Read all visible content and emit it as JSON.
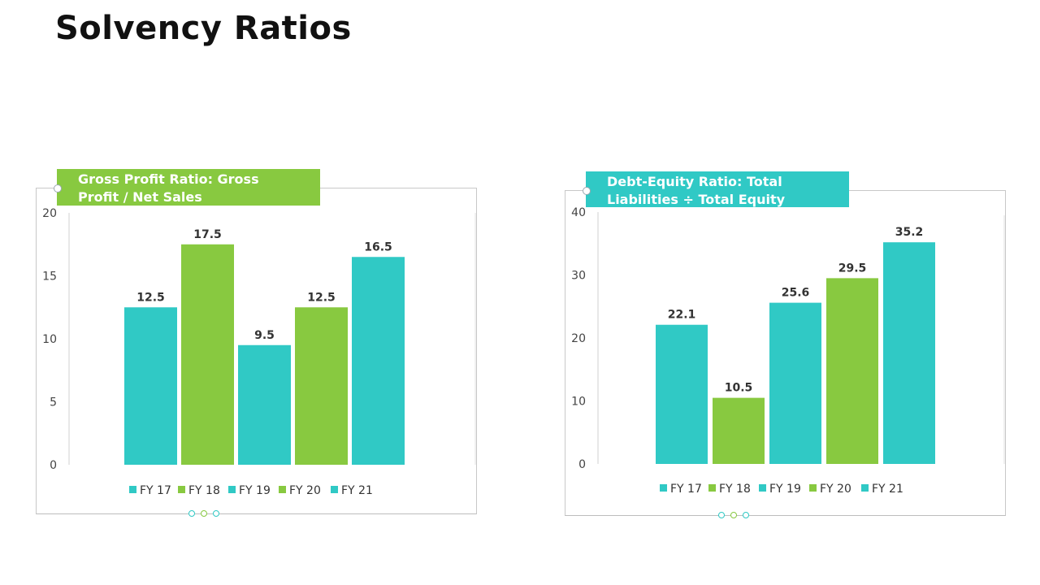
{
  "page": {
    "title": "Solvency Ratios"
  },
  "colors": {
    "teal": "#30C9C5",
    "green": "#88C940",
    "axis_text": "#444444"
  },
  "chart_data": [
    {
      "type": "bar",
      "title": "Gross Profit Ratio: Gross Profit / Net Sales",
      "title_lines": [
        "Gross Profit Ratio: Gross",
        "Profit / Net Sales"
      ],
      "categories": [
        "FY 17",
        "FY 18",
        "FY 19",
        "FY 20",
        "FY 21"
      ],
      "values": [
        12.5,
        17.5,
        9.5,
        12.5,
        16.5
      ],
      "bar_colors": [
        "#30C9C5",
        "#88C940",
        "#30C9C5",
        "#88C940",
        "#30C9C5"
      ],
      "ylim": [
        0,
        20
      ],
      "yticks": [
        0,
        5,
        10,
        15,
        20
      ],
      "xlabel": "",
      "ylabel": "",
      "legend": "bottom"
    },
    {
      "type": "bar",
      "title": "Debt-Equity Ratio: Total Liabilities ÷ Total Equity",
      "title_lines": [
        "Debt-Equity Ratio: Total",
        "Liabilities ÷ Total Equity"
      ],
      "categories": [
        "FY 17",
        "FY 18",
        "FY 19",
        "FY 20",
        "FY 21"
      ],
      "values": [
        22.1,
        10.5,
        25.6,
        29.5,
        35.2
      ],
      "bar_colors": [
        "#30C9C5",
        "#88C940",
        "#30C9C5",
        "#88C940",
        "#30C9C5"
      ],
      "ylim": [
        0,
        40
      ],
      "yticks": [
        0,
        10,
        20,
        30,
        40
      ],
      "xlabel": "",
      "ylabel": "",
      "legend": "bottom"
    }
  ]
}
